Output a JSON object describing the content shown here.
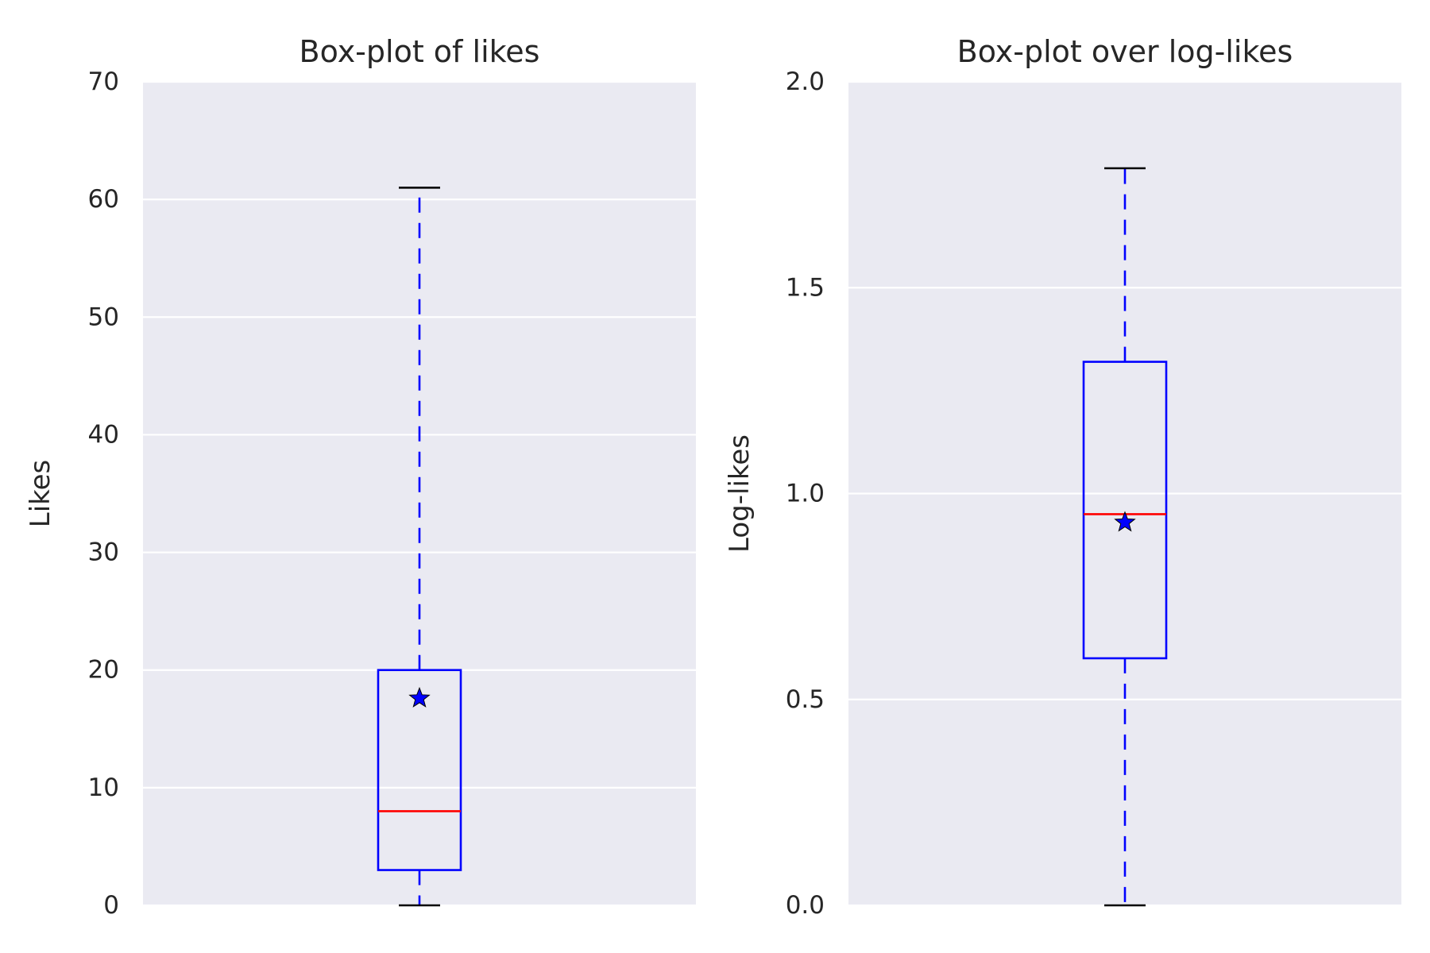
{
  "chart_data": [
    {
      "type": "box",
      "title": "Box-plot of likes",
      "ylabel": "Likes",
      "xlabel": "",
      "ylim": [
        0,
        70
      ],
      "yticks": [
        0,
        10,
        20,
        30,
        40,
        50,
        60,
        70
      ],
      "ytick_labels": [
        "0",
        "10",
        "20",
        "30",
        "40",
        "50",
        "60",
        "70"
      ],
      "grid": true,
      "background": "#eaeaf2",
      "box": {
        "whisker_low": 0,
        "q1": 3,
        "median": 8,
        "q3": 20,
        "whisker_high": 61,
        "mean": 17.6
      },
      "colors": {
        "box": "#0000ff",
        "median": "#ff0000",
        "whisker": "#0000ff",
        "cap": "#000000",
        "mean_marker": "#0000ff"
      }
    },
    {
      "type": "box",
      "title": "Box-plot over log-likes",
      "ylabel": "Log-likes",
      "xlabel": "",
      "ylim": [
        0,
        2
      ],
      "yticks": [
        0,
        0.5,
        1.0,
        1.5,
        2.0
      ],
      "ytick_labels": [
        "0.0",
        "0.5",
        "1.0",
        "1.5",
        "2.0"
      ],
      "grid": true,
      "background": "#eaeaf2",
      "box": {
        "whisker_low": 0,
        "q1": 0.6,
        "median": 0.95,
        "q3": 1.32,
        "whisker_high": 1.79,
        "mean": 0.93
      },
      "colors": {
        "box": "#0000ff",
        "median": "#ff0000",
        "whisker": "#0000ff",
        "cap": "#000000",
        "mean_marker": "#0000ff"
      }
    }
  ]
}
